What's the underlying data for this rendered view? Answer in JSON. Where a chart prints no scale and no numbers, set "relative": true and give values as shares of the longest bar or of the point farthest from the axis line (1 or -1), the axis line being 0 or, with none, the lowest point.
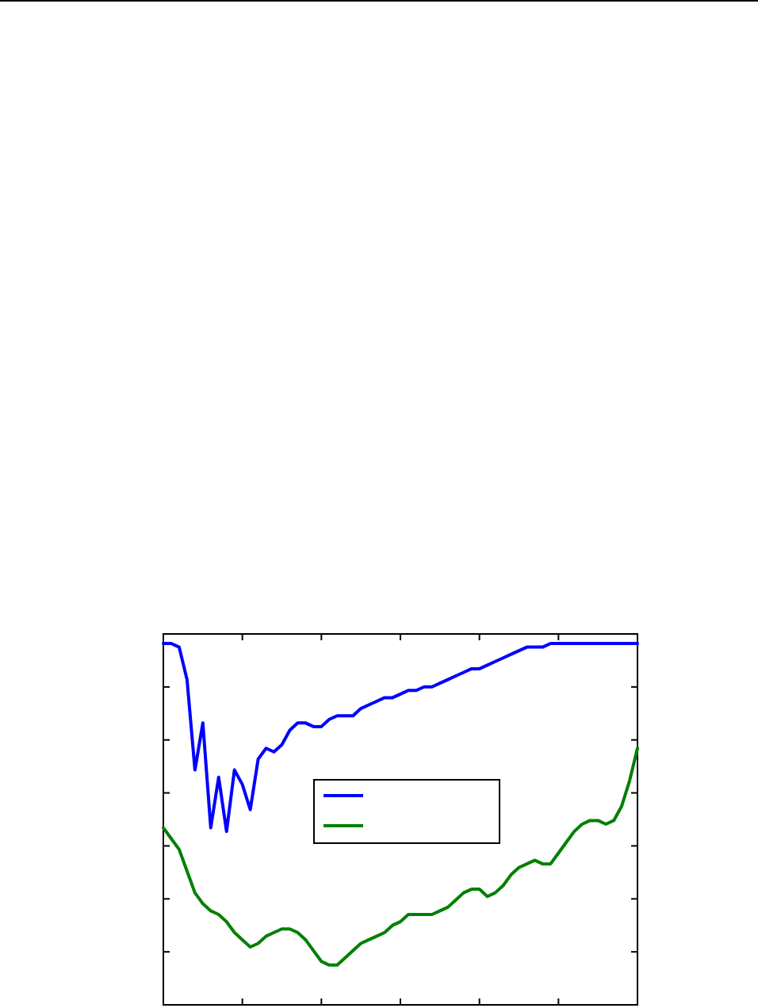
{
  "chart_data": {
    "type": "line",
    "relative": true,
    "categories": [
      null,
      null,
      null,
      null,
      null,
      null,
      null,
      null,
      null,
      null,
      null,
      null,
      null,
      null,
      null,
      null,
      null,
      null,
      null,
      null,
      null,
      null,
      null,
      null,
      null,
      null,
      null,
      null,
      null,
      null,
      null,
      null,
      null,
      null,
      null,
      null,
      null,
      null,
      null,
      null,
      null,
      null,
      null,
      null,
      null,
      null,
      null,
      null,
      null,
      null,
      null,
      null,
      null,
      null,
      null,
      null,
      null,
      null,
      null,
      null,
      null
    ],
    "series": [
      {
        "color": "#0000ff",
        "values": [
          1,
          1,
          0.99,
          0.9,
          0.65,
          0.78,
          0.49,
          0.63,
          0.48,
          0.65,
          0.61,
          0.54,
          0.68,
          0.71,
          0.7,
          0.72,
          0.76,
          0.78,
          0.78,
          0.77,
          0.77,
          0.79,
          0.8,
          0.8,
          0.8,
          0.82,
          0.83,
          0.84,
          0.85,
          0.85,
          0.86,
          0.87,
          0.87,
          0.88,
          0.88,
          0.89,
          0.9,
          0.91,
          0.92,
          0.93,
          0.93,
          0.94,
          0.95,
          0.96,
          0.97,
          0.98,
          0.99,
          0.99,
          0.99,
          1,
          1,
          1,
          1,
          1,
          1,
          1,
          1,
          1,
          1,
          1,
          1
        ]
      },
      {
        "color": "#008000",
        "values": [
          0.49,
          0.46,
          0.43,
          0.37,
          0.31,
          0.28,
          0.26,
          0.25,
          0.23,
          0.2,
          0.18,
          0.16,
          0.17,
          0.19,
          0.2,
          0.21,
          0.21,
          0.2,
          0.18,
          0.15,
          0.12,
          0.11,
          0.11,
          0.13,
          0.15,
          0.17,
          0.18,
          0.19,
          0.2,
          0.22,
          0.23,
          0.25,
          0.25,
          0.25,
          0.25,
          0.26,
          0.27,
          0.29,
          0.31,
          0.32,
          0.32,
          0.3,
          0.31,
          0.33,
          0.36,
          0.38,
          0.39,
          0.4,
          0.39,
          0.39,
          0.42,
          0.45,
          0.48,
          0.5,
          0.51,
          0.51,
          0.5,
          0.51,
          0.55,
          0.62,
          0.71
        ]
      }
    ]
  }
}
